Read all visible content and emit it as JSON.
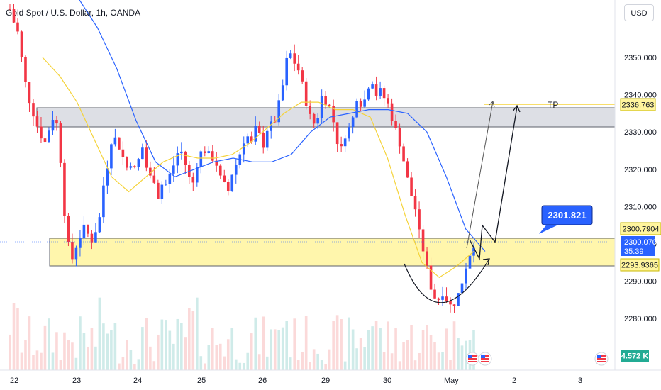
{
  "header": {
    "title": "Gold Spot / U.S. Dollar, 1h, OANDA",
    "currency": "USD"
  },
  "colors": {
    "up": "#26a69a",
    "down": "#ef5350",
    "candle_up": "#2962ff",
    "candle_down": "#f23645",
    "ma_fast": "#f5d33a",
    "ma_slow": "#2962ff",
    "support_zone": "#fff59d",
    "resistance_zone": "#d1d4dc",
    "tp_line": "#f5d33a",
    "callout": "#2962ff"
  },
  "annotations": {
    "tp_label": "TP",
    "callout_price": "2301.821"
  },
  "price_badges": {
    "tp": "2336.763",
    "upper": "2300.7904",
    "current": "2300.070",
    "countdown": "35:39",
    "lower": "2293.9365",
    "volume": "4.572 K"
  },
  "chart_data": {
    "type": "candlestick",
    "title": "Gold Spot / U.S. Dollar, 1h, OANDA",
    "y_ticks": [
      2280,
      2290,
      2300,
      2310,
      2320,
      2330,
      2340,
      2350
    ],
    "y_tick_labels": [
      "2280.000",
      "2290.000",
      "2300.000",
      "2310.000",
      "2320.000",
      "2330.000",
      "2340.000",
      "2350.000"
    ],
    "ylim": [
      2274,
      2366
    ],
    "x_tick_labels": [
      "22",
      "23",
      "24",
      "25",
      "26",
      "29",
      "30",
      "May",
      "2",
      "3"
    ],
    "zones": [
      {
        "name": "resistance",
        "from": 2330.9,
        "to": 2336.763
      },
      {
        "name": "support",
        "from": 2293.9365,
        "to": 2300.7904
      }
    ],
    "tp_level": 2336.763,
    "current_price": 2300.07,
    "projection_path": [
      2301.2,
      2296.0,
      2305.0,
      2300.5,
      2336.8
    ],
    "anchors": [
      2363,
      2359,
      2356,
      2346,
      2340,
      2336,
      2332,
      2329,
      2327,
      2332,
      2335,
      2329,
      2311,
      2300,
      2296,
      2300,
      2303,
      2305,
      2300,
      2303,
      2306,
      2316,
      2322,
      2330,
      2327,
      2325,
      2320,
      2322,
      2320,
      2323,
      2327,
      2316,
      2320,
      2312,
      2316,
      2316,
      2319,
      2322,
      2326,
      2323,
      2318,
      2316,
      2322,
      2325,
      2325,
      2323,
      2323,
      2318,
      2316,
      2314,
      2320,
      2322,
      2326,
      2330,
      2326,
      2331,
      2329,
      2326,
      2333,
      2331,
      2336,
      2341,
      2349,
      2351,
      2348,
      2346,
      2340,
      2335,
      2332,
      2334,
      2340,
      2338,
      2336,
      2330,
      2324,
      2329,
      2331,
      2334,
      2341,
      2336,
      2341,
      2345,
      2340,
      2341,
      2339,
      2337,
      2332,
      2329,
      2324,
      2318,
      2313,
      2309,
      2301,
      2297,
      2290,
      2286,
      2285,
      2287,
      2285,
      2283,
      2285,
      2288,
      2293,
      2297,
      2300
    ],
    "ma_fast": [
      2350,
      2345,
      2338,
      2328,
      2318,
      2314,
      2318,
      2322,
      2324,
      2323,
      2323,
      2324,
      2327,
      2331,
      2335,
      2338,
      2338,
      2336,
      2336,
      2334,
      2323,
      2308,
      2295,
      2291,
      2294,
      2298
    ],
    "ma_slow": [
      2366,
      2358,
      2347,
      2333,
      2322,
      2318,
      2320,
      2322,
      2323,
      2322,
      2322,
      2324,
      2330,
      2334,
      2335,
      2336,
      2336,
      2335,
      2330,
      2318,
      2304,
      2298
    ]
  }
}
